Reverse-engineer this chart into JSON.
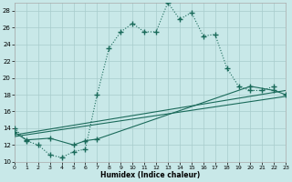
{
  "xlabel": "Humidex (Indice chaleur)",
  "bg_color": "#c8e8e8",
  "grid_color": "#a8cccc",
  "line_color": "#1a6a5a",
  "xlim": [
    0,
    23
  ],
  "ylim": [
    10,
    29
  ],
  "xticks": [
    0,
    1,
    2,
    3,
    4,
    5,
    6,
    7,
    8,
    9,
    10,
    11,
    12,
    13,
    14,
    15,
    16,
    17,
    18,
    19,
    20,
    21,
    22,
    23
  ],
  "yticks": [
    10,
    12,
    14,
    16,
    18,
    20,
    22,
    24,
    26,
    28
  ],
  "curve_main_x": [
    0,
    1,
    2,
    3,
    4,
    5,
    6,
    7,
    8,
    9,
    10,
    11,
    12,
    13,
    14,
    15,
    16,
    17,
    18,
    19,
    20,
    21,
    22
  ],
  "curve_main_y": [
    14.0,
    12.5,
    12.0,
    10.8,
    10.5,
    11.2,
    11.5,
    18.0,
    23.5,
    25.5,
    26.5,
    25.5,
    25.5,
    29.0,
    27.0,
    27.8,
    25.0,
    25.2,
    21.2,
    19.0,
    18.5,
    18.5,
    19.0
  ],
  "curve2_x": [
    0,
    1,
    2,
    3,
    4,
    5,
    6,
    7,
    8,
    9,
    10,
    11,
    12,
    13,
    14,
    15,
    16,
    17,
    18,
    19,
    20,
    21,
    22,
    23
  ],
  "curve2_y": [
    13.5,
    12.6,
    null,
    12.8,
    null,
    12.0,
    12.5,
    12.7,
    null,
    null,
    null,
    null,
    null,
    null,
    null,
    null,
    null,
    null,
    null,
    null,
    19.0,
    null,
    18.5,
    18.0
  ],
  "curve3_x": [
    0,
    1,
    2,
    3,
    4,
    5,
    6,
    7,
    8,
    9,
    10,
    11,
    12,
    13,
    14,
    15,
    16,
    17,
    18,
    19,
    20,
    21,
    22,
    23
  ],
  "curve3_y": [
    13.0,
    null,
    null,
    null,
    null,
    null,
    null,
    null,
    null,
    null,
    null,
    null,
    null,
    null,
    null,
    null,
    null,
    null,
    null,
    null,
    null,
    null,
    null,
    17.8
  ],
  "curve4_x": [
    0,
    1,
    2,
    3,
    4,
    5,
    6,
    7,
    8,
    9,
    10,
    11,
    12,
    13,
    14,
    15,
    16,
    17,
    18,
    19,
    20,
    21,
    22,
    23
  ],
  "curve4_y": [
    13.2,
    null,
    null,
    null,
    null,
    null,
    null,
    null,
    null,
    null,
    null,
    null,
    null,
    null,
    null,
    null,
    null,
    null,
    null,
    null,
    null,
    null,
    null,
    18.5
  ]
}
